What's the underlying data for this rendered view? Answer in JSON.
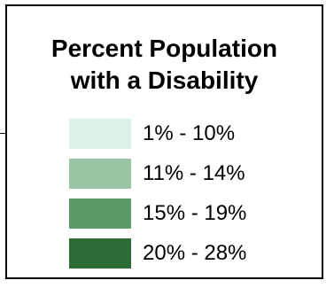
{
  "legend": {
    "title_line1": "Percent Population",
    "title_line2": "with a Disability",
    "items": [
      {
        "label": "1% - 10%",
        "color": "#daf3e6"
      },
      {
        "label": "11% - 14%",
        "color": "#9ac6a6"
      },
      {
        "label": "15% - 19%",
        "color": "#5d9a6a"
      },
      {
        "label": "20% - 28%",
        "color": "#2b6c36"
      }
    ]
  }
}
